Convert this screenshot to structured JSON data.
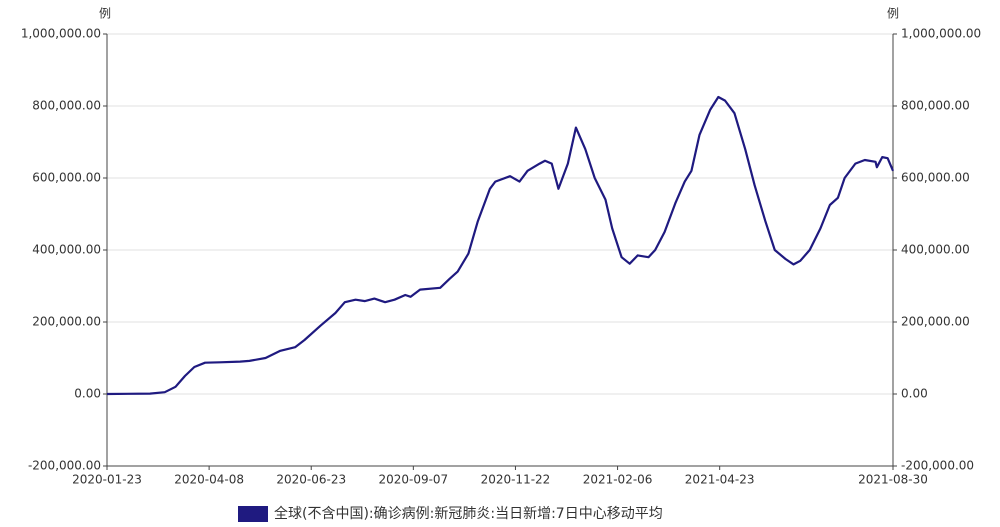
{
  "chart_data": {
    "type": "line",
    "y_label": "例",
    "y2_label": "例",
    "x": [
      "2020-01-23",
      "2020-02-24",
      "2020-03-06",
      "2020-03-14",
      "2020-03-21",
      "2020-03-28",
      "2020-04-05",
      "2020-04-16",
      "2020-05-01",
      "2020-05-08",
      "2020-05-20",
      "2020-05-31",
      "2020-06-11",
      "2020-06-18",
      "2020-06-30",
      "2020-07-11",
      "2020-07-18",
      "2020-07-26",
      "2020-08-02",
      "2020-08-09",
      "2020-08-17",
      "2020-08-24",
      "2020-09-01",
      "2020-09-05",
      "2020-09-12",
      "2020-09-27",
      "2020-10-04",
      "2020-10-10",
      "2020-10-18",
      "2020-10-25",
      "2020-11-03",
      "2020-11-07",
      "2020-11-18",
      "2020-11-25",
      "2020-12-01",
      "2020-12-10",
      "2020-12-14",
      "2020-12-19",
      "2020-12-24",
      "2020-12-31",
      "2021-01-06",
      "2021-01-13",
      "2021-01-20",
      "2021-01-28",
      "2021-02-02",
      "2021-02-09",
      "2021-02-15",
      "2021-02-21",
      "2021-03-01",
      "2021-03-06",
      "2021-03-13",
      "2021-03-21",
      "2021-03-28",
      "2021-04-02",
      "2021-04-08",
      "2021-04-16",
      "2021-04-22",
      "2021-04-27",
      "2021-05-04",
      "2021-05-12",
      "2021-05-19",
      "2021-05-27",
      "2021-06-03",
      "2021-06-11",
      "2021-06-17",
      "2021-06-22",
      "2021-06-29",
      "2021-07-07",
      "2021-07-14",
      "2021-07-20",
      "2021-07-25",
      "2021-08-02",
      "2021-08-09",
      "2021-08-17",
      "2021-08-18",
      "2021-08-22",
      "2021-08-26",
      "2021-08-30"
    ],
    "series": [
      {
        "name": "全球(不含中国):确诊病例:新冠肺炎:当日新增:7日中心移动平均",
        "color": "#1f1a80",
        "values": [
          0,
          1000,
          5000,
          20000,
          50000,
          75000,
          87000,
          88000,
          90000,
          92000,
          100000,
          120000,
          130000,
          150000,
          190000,
          225000,
          255000,
          262000,
          258000,
          265000,
          255000,
          262000,
          275000,
          270000,
          290000,
          295000,
          320000,
          340000,
          390000,
          480000,
          570000,
          590000,
          605000,
          590000,
          620000,
          640000,
          648000,
          640000,
          570000,
          640000,
          740000,
          680000,
          600000,
          540000,
          460000,
          380000,
          362000,
          385000,
          380000,
          400000,
          450000,
          530000,
          590000,
          620000,
          720000,
          790000,
          825000,
          815000,
          780000,
          680000,
          580000,
          480000,
          400000,
          375000,
          360000,
          370000,
          400000,
          460000,
          525000,
          545000,
          600000,
          640000,
          650000,
          645000,
          630000,
          658000,
          655000,
          620000
        ]
      }
    ],
    "xlim": [
      "2020-01-23",
      "2021-08-30"
    ],
    "xticks": [
      "2020-01-23",
      "2020-04-08",
      "2020-06-23",
      "2020-09-07",
      "2020-11-22",
      "2021-02-06",
      "2021-04-23",
      "2021-08-30"
    ],
    "ylim": [
      -200000,
      1000000
    ],
    "yticks": [
      {
        "value": -200000,
        "label": "-200,000.00"
      },
      {
        "value": 0,
        "label": "0.00"
      },
      {
        "value": 200000,
        "label": "200,000.00"
      },
      {
        "value": 400000,
        "label": "400,000.00"
      },
      {
        "value": 600000,
        "label": "600,000.00"
      },
      {
        "value": 800000,
        "label": "800,000.00"
      },
      {
        "value": 1000000,
        "label": "1,000,000.00"
      }
    ],
    "y2lim": [
      -200000,
      1000000
    ],
    "y2ticks": [
      {
        "value": -200000,
        "label": "-200,000.00"
      },
      {
        "value": 0,
        "label": "0.00"
      },
      {
        "value": 200000,
        "label": "200,000.00"
      },
      {
        "value": 400000,
        "label": "400,000.00"
      },
      {
        "value": 600000,
        "label": "600,000.00"
      },
      {
        "value": 800000,
        "label": "800,000.00"
      },
      {
        "value": 1000000,
        "label": "1,000,000.00"
      }
    ],
    "grid": true,
    "legend": "bottom"
  }
}
